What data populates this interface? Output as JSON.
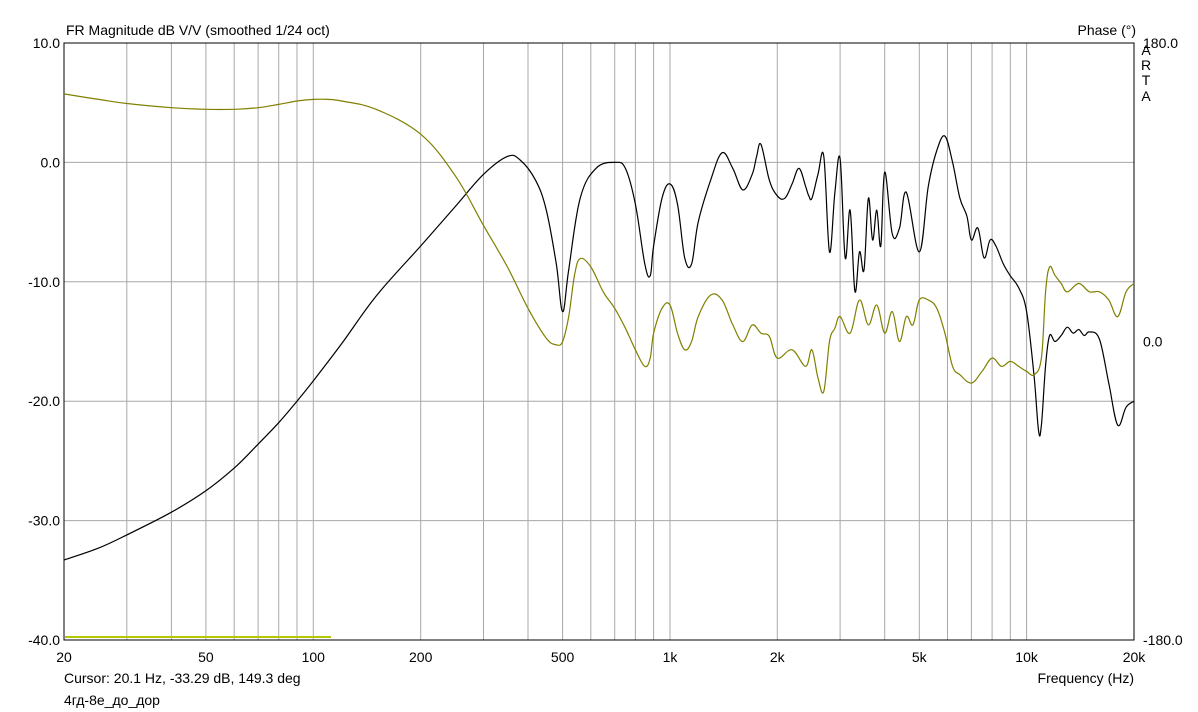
{
  "header": {
    "title": "FR Magnitude dB V/V (smoothed 1/24 oct)",
    "phase_title": "Phase (°)",
    "brand_letters": [
      "A",
      "R",
      "T",
      "A"
    ]
  },
  "footer": {
    "cursor_text": "Cursor: 20.1 Hz, -33.29 dB, 149.3 deg",
    "file_name": "4гд-8е_до_дор"
  },
  "colors": {
    "magnitude": "#000000",
    "phase": "#808000",
    "grid": "#a8a8a8",
    "marker": "#b4c800"
  },
  "chart_data": {
    "type": "line",
    "title": "FR Magnitude dB V/V (smoothed 1/24 oct)",
    "xlabel": "Frequency (Hz)",
    "ylabel": "",
    "y2label": "Phase (°)",
    "xscale": "log",
    "xlim": [
      20,
      20000
    ],
    "ylim": [
      -40,
      10
    ],
    "y2lim": [
      -180,
      180
    ],
    "grid": true,
    "x_ticks": [
      20,
      50,
      100,
      200,
      500,
      1000,
      2000,
      5000,
      10000,
      20000
    ],
    "x_tick_labels": [
      "20",
      "50",
      "100",
      "200",
      "500",
      "1k",
      "2k",
      "5k",
      "10k",
      "20k"
    ],
    "y_ticks": [
      10,
      0,
      -10,
      -20,
      -30,
      -40
    ],
    "y_tick_labels": [
      "10.0",
      "0.0",
      "-10.0",
      "-20.0",
      "-30.0",
      "-40.0"
    ],
    "y2_ticks": [
      180,
      0,
      -180
    ],
    "y2_tick_labels": [
      "180.0",
      "0.0",
      "-180.0"
    ],
    "series": [
      {
        "axis": "left",
        "x": [
          20,
          25,
          30,
          40,
          50,
          60,
          70,
          80,
          90,
          100,
          120,
          150,
          200,
          250,
          300,
          350,
          380,
          420,
          450,
          480,
          500,
          520,
          560,
          620,
          700,
          750,
          800,
          850,
          880,
          900,
          950,
          1000,
          1050,
          1100,
          1150,
          1200,
          1300,
          1400,
          1500,
          1600,
          1700,
          1750,
          1800,
          1900,
          2000,
          2100,
          2200,
          2300,
          2400,
          2450,
          2500,
          2600,
          2700,
          2800,
          2900,
          3000,
          3100,
          3200,
          3300,
          3400,
          3500,
          3600,
          3700,
          3800,
          3900,
          4000,
          4200,
          4400,
          4600,
          5000,
          5300,
          5600,
          5900,
          6200,
          6500,
          6800,
          7000,
          7300,
          7600,
          7900,
          8200,
          8600,
          9000,
          9500,
          10000,
          10500,
          10800,
          11000,
          11300,
          11600,
          12000,
          12500,
          13000,
          13500,
          14000,
          14500,
          15000,
          16000,
          17000,
          18000,
          19000,
          20000
        ],
        "values": [
          -33.3,
          -32.3,
          -31.2,
          -29.3,
          -27.5,
          -25.6,
          -23.6,
          -21.8,
          -20.0,
          -18.3,
          -15.2,
          -11.2,
          -7.0,
          -3.7,
          -1.0,
          0.5,
          0.2,
          -1.5,
          -4.0,
          -8.5,
          -12.5,
          -9.0,
          -3.0,
          -0.5,
          0.0,
          -0.5,
          -3.5,
          -8.5,
          -9.5,
          -7.0,
          -3.0,
          -1.8,
          -3.5,
          -8.0,
          -8.5,
          -5.0,
          -1.5,
          0.8,
          -0.5,
          -2.3,
          -1.0,
          0.5,
          1.5,
          -1.5,
          -2.8,
          -3.0,
          -1.8,
          -0.5,
          -2.0,
          -2.8,
          -3.0,
          -1.0,
          0.5,
          -7.5,
          -2.5,
          0.3,
          -8.0,
          -4.0,
          -10.8,
          -7.5,
          -9.0,
          -3.0,
          -6.5,
          -4.0,
          -7.0,
          -0.8,
          -6.0,
          -5.5,
          -2.5,
          -7.5,
          -2.0,
          1.0,
          2.2,
          0.0,
          -3.0,
          -4.5,
          -6.5,
          -5.5,
          -8.0,
          -6.5,
          -7.0,
          -8.5,
          -9.5,
          -10.5,
          -12.5,
          -18.0,
          -22.5,
          -22.0,
          -17.0,
          -14.5,
          -15.0,
          -14.5,
          -13.8,
          -14.3,
          -14.0,
          -14.5,
          -14.2,
          -14.8,
          -18.5,
          -22.0,
          -20.5,
          -20.0
        ]
      },
      {
        "axis": "right",
        "x": [
          20,
          25,
          30,
          40,
          50,
          60,
          70,
          80,
          90,
          100,
          110,
          120,
          150,
          200,
          250,
          300,
          350,
          400,
          450,
          480,
          500,
          520,
          540,
          560,
          600,
          650,
          700,
          750,
          800,
          850,
          880,
          900,
          950,
          1000,
          1050,
          1100,
          1150,
          1200,
          1300,
          1400,
          1500,
          1600,
          1700,
          1800,
          1900,
          2000,
          2200,
          2400,
          2500,
          2600,
          2700,
          2800,
          2900,
          3000,
          3200,
          3400,
          3600,
          3800,
          4000,
          4200,
          4400,
          4600,
          4800,
          5000,
          5300,
          5600,
          5900,
          6200,
          6500,
          7000,
          7500,
          8000,
          8500,
          9000,
          9500,
          10000,
          10500,
          11000,
          11300,
          11600,
          12000,
          12500,
          13000,
          14000,
          15000,
          16000,
          17000,
          18000,
          19000,
          20000
        ],
        "values": [
          149.3,
          146,
          143.5,
          141,
          140,
          140,
          141,
          143,
          145,
          146,
          146,
          145,
          140,
          125,
          100,
          70,
          45,
          20,
          2,
          -2,
          0,
          15,
          40,
          50,
          45,
          30,
          20,
          8,
          -5,
          -15,
          -10,
          5,
          20,
          22,
          5,
          -5,
          0,
          15,
          28,
          25,
          10,
          0,
          10,
          5,
          3,
          -10,
          -5,
          -15,
          -5,
          -22,
          -30,
          0,
          8,
          15,
          5,
          25,
          10,
          22,
          5,
          18,
          0,
          15,
          10,
          25,
          25,
          20,
          5,
          -15,
          -20,
          -25,
          -18,
          -10,
          -15,
          -12,
          -15,
          -18,
          -20,
          -10,
          30,
          45,
          40,
          35,
          30,
          35,
          30,
          30,
          25,
          15,
          30,
          35
        ]
      }
    ]
  }
}
